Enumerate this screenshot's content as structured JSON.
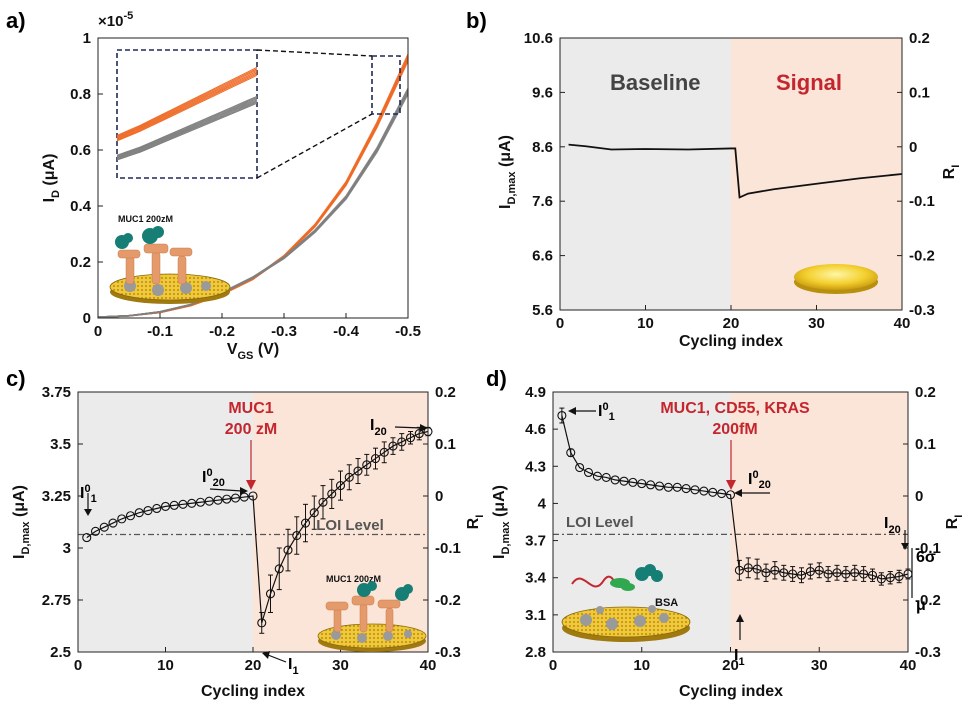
{
  "chart_data": [
    {
      "id": "a",
      "panel_label": "a)",
      "type": "line",
      "xlabel": "V",
      "xlabel_sub": "GS",
      "xlabel_suffix": " (V)",
      "ylabel": "I",
      "ylabel_sub": "D",
      "ylabel_suffix": " (μA)",
      "xlim": [
        0,
        -0.5
      ],
      "ylim": [
        0,
        1
      ],
      "x_ticks": [
        "0",
        "-0.1",
        "-0.2",
        "-0.3",
        "-0.4",
        "-0.5"
      ],
      "y_ticks": [
        "0",
        "0.2",
        "0.4",
        "0.6",
        "0.8",
        "1"
      ],
      "y_multiplier": "×10",
      "y_multiplier_exp": "-5",
      "inset_label": "MUC1 200zM",
      "series": [
        {
          "color": "#ee6a25",
          "x": [
            0,
            -0.05,
            -0.1,
            -0.15,
            -0.2,
            -0.25,
            -0.3,
            -0.35,
            -0.4,
            -0.45,
            -0.5
          ],
          "values": [
            0.003,
            0.008,
            0.02,
            0.045,
            0.085,
            0.14,
            0.22,
            0.33,
            0.48,
            0.69,
            0.93
          ]
        },
        {
          "color": "#7f7f7f",
          "x": [
            0,
            -0.05,
            -0.1,
            -0.15,
            -0.2,
            -0.25,
            -0.3,
            -0.35,
            -0.4,
            -0.45,
            -0.5
          ],
          "values": [
            0.003,
            0.008,
            0.022,
            0.048,
            0.09,
            0.145,
            0.215,
            0.31,
            0.43,
            0.6,
            0.81
          ]
        }
      ]
    },
    {
      "id": "b",
      "panel_label": "b)",
      "type": "line",
      "xlabel": "Cycling index",
      "ylabel": "I",
      "ylabel_sub": "D,max",
      "ylabel_suffix": " (μA)",
      "y2label": "R",
      "y2label_sub": "I",
      "xlim": [
        0,
        40
      ],
      "ylim": [
        5.6,
        10.6
      ],
      "y2lim": [
        -0.3,
        0.2
      ],
      "x_ticks": [
        "0",
        "10",
        "20",
        "30",
        "40"
      ],
      "y_ticks": [
        "5.6",
        "6.6",
        "7.6",
        "8.6",
        "9.6",
        "10.6"
      ],
      "y2_ticks": [
        "-0.3",
        "-0.2",
        "-0.1",
        "0",
        "0.1",
        "0.2"
      ],
      "regions": [
        {
          "label": "Baseline",
          "from": 0,
          "to": 20,
          "color": "#ebebeb"
        },
        {
          "label": "Signal",
          "from": 20,
          "to": 40,
          "color": "#fbe4d8"
        }
      ],
      "series": [
        {
          "color": "#111111",
          "x": [
            1,
            3,
            6,
            10,
            15,
            20,
            20.5,
            21,
            22,
            25,
            30,
            35,
            40
          ],
          "values": [
            8.64,
            8.61,
            8.55,
            8.56,
            8.55,
            8.57,
            8.57,
            7.67,
            7.74,
            7.82,
            7.92,
            8.02,
            8.1
          ]
        }
      ]
    },
    {
      "id": "c",
      "panel_label": "c)",
      "type": "scatter",
      "xlabel": "Cycling index",
      "ylabel": "I",
      "ylabel_sub": "D,max",
      "ylabel_suffix": " (μA)",
      "y2label": "R",
      "y2label_sub": "I",
      "xlim": [
        0,
        40
      ],
      "ylim": [
        2.5,
        3.75
      ],
      "y2lim": [
        -0.3,
        0.2
      ],
      "x_ticks": [
        "0",
        "10",
        "20",
        "30",
        "40"
      ],
      "y_ticks": [
        "2.5",
        "2.75",
        "3",
        "3.25",
        "3.5",
        "3.75"
      ],
      "y2_ticks": [
        "-0.3",
        "-0.2",
        "-0.1",
        "0",
        "0.1",
        "0.2"
      ],
      "regions": [
        {
          "from": 0,
          "to": 20,
          "color": "#ebebeb"
        },
        {
          "from": 20,
          "to": 40,
          "color": "#fbe4d8"
        }
      ],
      "loi": {
        "label": "LOI Level",
        "value": 3.065
      },
      "target_label": [
        "MUC1",
        "200 zM"
      ],
      "inset_label": "MUC1 200zM",
      "x": [
        1,
        2,
        3,
        4,
        5,
        6,
        7,
        8,
        9,
        10,
        11,
        12,
        13,
        14,
        15,
        16,
        17,
        18,
        19,
        20,
        21,
        22,
        23,
        24,
        25,
        26,
        27,
        28,
        29,
        30,
        31,
        32,
        33,
        34,
        35,
        36,
        37,
        38,
        39,
        40
      ],
      "values": [
        3.05,
        3.08,
        3.1,
        3.12,
        3.14,
        3.155,
        3.17,
        3.18,
        3.19,
        3.2,
        3.205,
        3.21,
        3.215,
        3.22,
        3.225,
        3.23,
        3.235,
        3.24,
        3.245,
        3.25,
        2.64,
        2.78,
        2.9,
        2.99,
        3.06,
        3.12,
        3.17,
        3.22,
        3.26,
        3.3,
        3.34,
        3.37,
        3.4,
        3.43,
        3.46,
        3.49,
        3.51,
        3.53,
        3.55,
        3.56
      ],
      "errors": [
        0,
        0,
        0,
        0,
        0,
        0,
        0,
        0,
        0,
        0,
        0,
        0,
        0,
        0,
        0,
        0,
        0,
        0,
        0,
        0,
        0.05,
        0.09,
        0.1,
        0.1,
        0.09,
        0.09,
        0.08,
        0.08,
        0.07,
        0.07,
        0.06,
        0.06,
        0.05,
        0.05,
        0.05,
        0.04,
        0.04,
        0.03,
        0.03,
        0.02
      ]
    },
    {
      "id": "d",
      "panel_label": "d)",
      "type": "scatter",
      "xlabel": "Cycling index",
      "ylabel": "I",
      "ylabel_sub": "D,max",
      "ylabel_suffix": " (μA)",
      "y2label": "R",
      "y2label_sub": "I",
      "xlim": [
        0,
        40
      ],
      "ylim": [
        2.8,
        4.9
      ],
      "y2lim": [
        -0.3,
        0.2
      ],
      "x_ticks": [
        "0",
        "10",
        "20",
        "30",
        "40"
      ],
      "y_ticks": [
        "2.8",
        "3.1",
        "3.4",
        "3.7",
        "4",
        "4.3",
        "4.6",
        "4.9"
      ],
      "y2_ticks": [
        "-0.3",
        "-0.2",
        "-0.1",
        "0",
        "0.1",
        "0.2"
      ],
      "regions": [
        {
          "from": 0,
          "to": 20,
          "color": "#ebebeb"
        },
        {
          "from": 20,
          "to": 40,
          "color": "#fbe4d8"
        }
      ],
      "loi": {
        "label": "LOI Level",
        "value": 3.75
      },
      "target_label": [
        "MUC1, CD55, KRAS",
        "200fM"
      ],
      "inset_label": "BSA",
      "x": [
        1,
        2,
        3,
        4,
        5,
        6,
        7,
        8,
        9,
        10,
        11,
        12,
        13,
        14,
        15,
        16,
        17,
        18,
        19,
        20,
        21,
        22,
        23,
        24,
        25,
        26,
        27,
        28,
        29,
        30,
        31,
        32,
        33,
        34,
        35,
        36,
        37,
        38,
        39,
        40
      ],
      "values": [
        4.71,
        4.41,
        4.29,
        4.25,
        4.22,
        4.21,
        4.19,
        4.18,
        4.17,
        4.16,
        4.15,
        4.14,
        4.13,
        4.13,
        4.12,
        4.11,
        4.1,
        4.09,
        4.08,
        4.07,
        3.46,
        3.48,
        3.47,
        3.44,
        3.46,
        3.44,
        3.43,
        3.42,
        3.45,
        3.46,
        3.43,
        3.44,
        3.43,
        3.44,
        3.43,
        3.42,
        3.39,
        3.4,
        3.41,
        3.43
      ],
      "errors": [
        0.06,
        0.03,
        0,
        0,
        0,
        0,
        0,
        0,
        0,
        0,
        0,
        0,
        0,
        0,
        0,
        0,
        0,
        0,
        0,
        0,
        0.08,
        0.08,
        0.08,
        0.07,
        0.07,
        0.06,
        0.06,
        0.06,
        0.06,
        0.06,
        0.06,
        0.06,
        0.06,
        0.06,
        0.06,
        0.05,
        0.05,
        0.05,
        0.05,
        0.04
      ]
    }
  ],
  "annotations": {
    "c": {
      "i01": "I",
      "i01_sup": "0",
      "i01_sub": "1",
      "i020": "I",
      "i020_sup": "0",
      "i020_sub": "20",
      "i1": "I",
      "i1_sub": "1",
      "i20": "I",
      "i20_sub": "20"
    },
    "d": {
      "i01": "I",
      "i01_sup": "0",
      "i01_sub": "1",
      "i020": "I",
      "i020_sup": "0",
      "i020_sub": "20",
      "i1": "I",
      "i1_sub": "1",
      "i20": "I",
      "i20_sub": "20",
      "sigma": "6σ",
      "mu": "μ"
    }
  }
}
